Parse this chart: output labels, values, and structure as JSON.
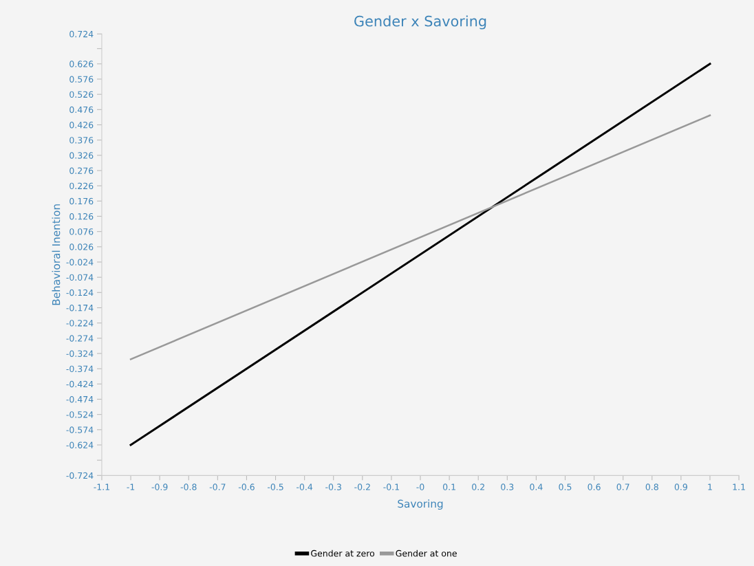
{
  "chart_data": {
    "type": "line",
    "title": "Gender x Savoring",
    "xlabel": "Savoring",
    "ylabel": "Behavioral Inention",
    "x": [
      -1,
      1
    ],
    "series": [
      {
        "name": "Gender at zero",
        "color": "#000000",
        "values": [
          -0.624,
          0.626
        ]
      },
      {
        "name": "Gender at one",
        "color": "#999999",
        "values": [
          -0.343,
          0.457
        ]
      }
    ],
    "xlim": [
      -1.1,
      1.1
    ],
    "xticks": [
      -1.1,
      -1,
      -0.9,
      -0.8,
      -0.7,
      -0.6,
      -0.5,
      -0.4,
      -0.3,
      -0.2,
      -0.1,
      {
        "value": 0,
        "label": "-0"
      },
      0.1,
      0.2,
      0.3,
      0.4,
      0.5,
      0.6,
      0.7,
      0.8,
      0.9,
      1,
      1.1
    ],
    "ylim": [
      -0.724,
      0.724
    ],
    "yticks": [
      -0.724,
      {
        "value": -0.674,
        "label": null
      },
      -0.624,
      -0.574,
      -0.524,
      -0.474,
      -0.424,
      -0.374,
      -0.324,
      -0.274,
      -0.224,
      -0.174,
      -0.124,
      -0.074,
      -0.024,
      0.026,
      0.076,
      0.126,
      0.176,
      0.226,
      0.276,
      0.326,
      0.376,
      0.426,
      0.476,
      0.526,
      0.576,
      0.626,
      {
        "value": 0.676,
        "label": null
      },
      0.724
    ],
    "grid": false,
    "legend": "bottom",
    "marker": "none",
    "line_style": "solid"
  }
}
